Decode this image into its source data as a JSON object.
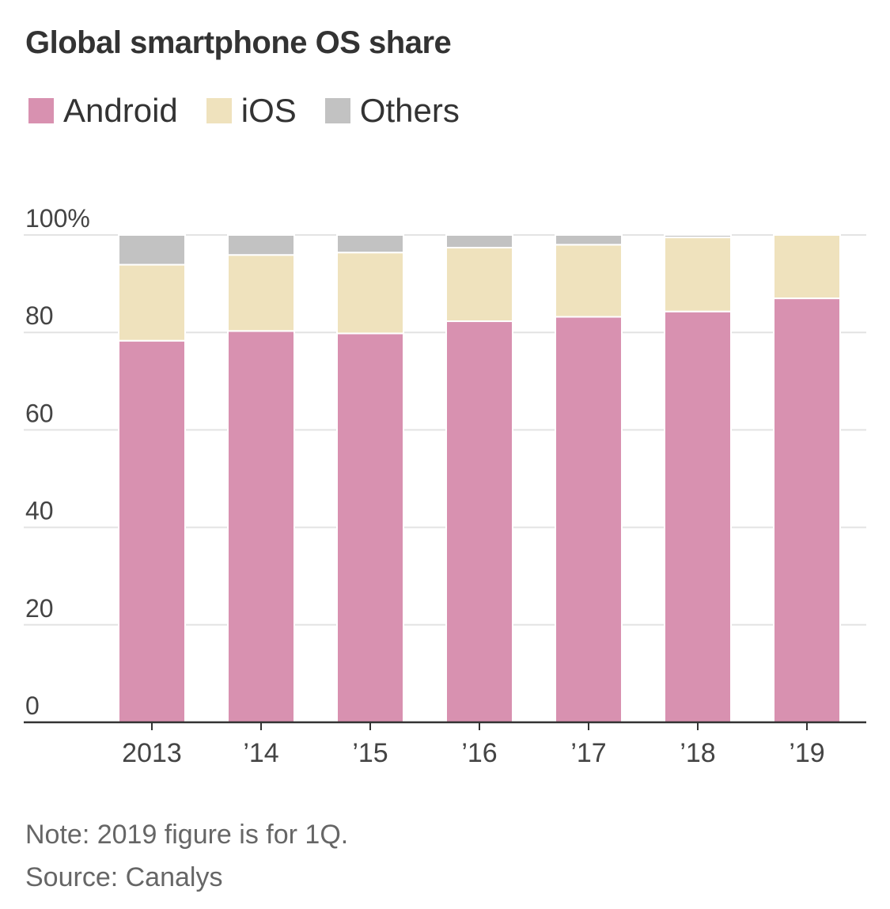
{
  "title": "Global smartphone OS share",
  "legend": [
    {
      "label": "Android",
      "color": "#d891b0"
    },
    {
      "label": "iOS",
      "color": "#efe2bd"
    },
    {
      "label": "Others",
      "color": "#c2c2c2"
    }
  ],
  "note": "Note: 2019 figure is for 1Q.",
  "source": "Source: Canalys",
  "chart_data": {
    "type": "bar",
    "stacked": true,
    "categories": [
      "2013",
      "’14",
      "’15",
      "’16",
      "’17",
      "’18",
      "’19"
    ],
    "series": [
      {
        "name": "Android",
        "color": "#d891b0",
        "values": [
          78.3,
          80.3,
          79.8,
          82.3,
          83.2,
          84.3,
          87.0
        ]
      },
      {
        "name": "iOS",
        "color": "#efe2bd",
        "values": [
          15.6,
          15.6,
          16.6,
          15.1,
          14.8,
          15.2,
          13.0
        ]
      },
      {
        "name": "Others",
        "color": "#c2c2c2",
        "values": [
          6.1,
          4.1,
          3.6,
          2.6,
          2.0,
          0.5,
          0.0
        ]
      }
    ],
    "y_ticks": [
      {
        "value": 0,
        "label": "0"
      },
      {
        "value": 20,
        "label": "20"
      },
      {
        "value": 40,
        "label": "40"
      },
      {
        "value": 60,
        "label": "60"
      },
      {
        "value": 80,
        "label": "80"
      },
      {
        "value": 100,
        "label": "100%"
      }
    ],
    "ylim": [
      0,
      100
    ],
    "grid": true,
    "legend_position": "top-left"
  }
}
